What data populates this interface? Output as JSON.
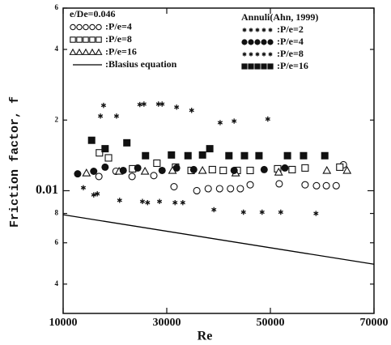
{
  "chart_data": {
    "type": "scatter",
    "ylabel": "Friction factor, f",
    "xlabel": "Re",
    "log_y": true,
    "xlim": [
      10000,
      70000
    ],
    "xticks": [
      10000,
      30000,
      50000,
      70000
    ],
    "ylim": [
      0.003,
      0.06
    ],
    "yticks": [
      {
        "value": 0.004,
        "label": "4"
      },
      {
        "value": 0.006,
        "label": "6"
      },
      {
        "value": 0.008,
        "label": "8"
      },
      0.01,
      {
        "value": 0.02,
        "label": "2"
      },
      {
        "value": 0.04,
        "label": "4"
      },
      {
        "value": 0.06,
        "label": "6"
      }
    ],
    "legends": [
      {
        "title": "e/De=0.046",
        "series": [
          {
            "name": ":P/e=4",
            "marker": "circle-open",
            "color": "#000000",
            "x": [
              16900,
              20200,
              23300,
              27500,
              31400,
              35800,
              38000,
              40200,
              42300,
              44200,
              46100,
              51700,
              56700,
              58900,
              60800,
              62700,
              64100
            ],
            "values": [
              0.0115,
              0.0121,
              0.0115,
              0.0116,
              0.0104,
              0.01,
              0.0102,
              0.0102,
              0.0102,
              0.0102,
              0.0106,
              0.0107,
              0.0106,
              0.0105,
              0.0105,
              0.0105,
              0.0129
            ]
          },
          {
            "name": ":P/e=8",
            "marker": "square-open",
            "color": "#000000",
            "x": [
              17000,
              18750,
              23400,
              28100,
              31700,
              34700,
              38800,
              40900,
              43600,
              46100,
              51400,
              54200,
              56700,
              63400
            ],
            "values": [
              0.0145,
              0.0138,
              0.0124,
              0.0131,
              0.0126,
              0.0122,
              0.0123,
              0.0122,
              0.0122,
              0.0122,
              0.0124,
              0.0123,
              0.0125,
              0.0126
            ]
          },
          {
            "name": ":P/e=16",
            "marker": "triangle-open",
            "color": "#000000",
            "x": [
              14500,
              20800,
              25800,
              31100,
              36900,
              43300,
              51600,
              60900,
              64800
            ],
            "values": [
              0.0119,
              0.0121,
              0.0121,
              0.0122,
              0.0122,
              0.0119,
              0.012,
              0.0122,
              0.0122
            ]
          },
          {
            "name": ":Blasius equation",
            "marker": "line",
            "color": "#000000",
            "x": [
              10000,
              70000
            ],
            "values": [
              0.0079,
              0.00486
            ]
          }
        ]
      },
      {
        "title": "Annuli(Ahn, 1999)",
        "series": [
          {
            "name": ":P/e=2",
            "marker": "star",
            "color": "#000000",
            "x": [
              17800,
              17200,
              20300,
              24800,
              25600,
              28400,
              29100,
              31900,
              34800,
              40300,
              43000,
              49500
            ],
            "values": [
              0.0231,
              0.0208,
              0.0208,
              0.0233,
              0.0234,
              0.0234,
              0.0234,
              0.0227,
              0.022,
              0.0195,
              0.0198,
              0.0202
            ]
          },
          {
            "name": ":P/e=4",
            "marker": "circle-filled",
            "color": "#000000",
            "x": [
              12800,
              15900,
              18100,
              21600,
              24400,
              29100,
              31900,
              35200,
              43000,
              48800,
              52800
            ],
            "values": [
              0.0118,
              0.0121,
              0.0126,
              0.0122,
              0.0125,
              0.0122,
              0.0125,
              0.0123,
              0.0122,
              0.0123,
              0.0125
            ]
          },
          {
            "name": ":P/e=8",
            "marker": "star",
            "color": "#000000",
            "x": [
              13900,
              15900,
              16600,
              20900,
              25300,
              26300,
              28600,
              31600,
              33100,
              39100,
              44800,
              48400,
              52000,
              58800
            ],
            "values": [
              0.0103,
              0.0096,
              0.0097,
              0.0091,
              0.009,
              0.0089,
              0.009,
              0.0089,
              0.0089,
              0.0083,
              0.0081,
              0.0081,
              0.0081,
              0.008
            ]
          },
          {
            "name": ":P/e=16",
            "marker": "square-filled",
            "color": "#000000",
            "x": [
              15500,
              18100,
              22300,
              25900,
              30900,
              34100,
              36900,
              38300,
              42000,
              45000,
              47800,
              53300,
              56400,
              60500
            ],
            "values": [
              0.0164,
              0.0151,
              0.016,
              0.0141,
              0.0142,
              0.0141,
              0.0142,
              0.0151,
              0.0141,
              0.0141,
              0.0141,
              0.0141,
              0.0141,
              0.0141
            ]
          }
        ]
      }
    ]
  }
}
